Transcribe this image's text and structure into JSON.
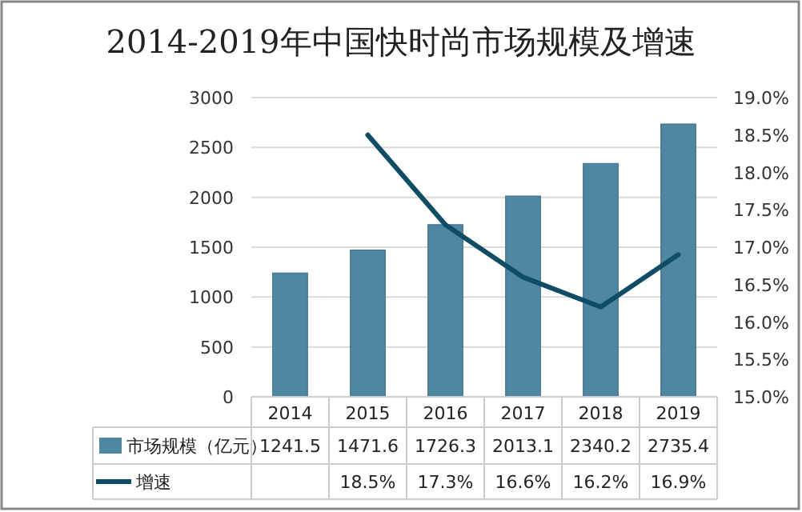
{
  "chart_data": {
    "type": "bar",
    "title": "2014-2019年中国快时尚市场规模及增速",
    "categories": [
      "2014",
      "2015",
      "2016",
      "2017",
      "2018",
      "2019"
    ],
    "series": [
      {
        "name": "市场规模（亿元）",
        "color": "#4f86a0",
        "values": [
          1241.5,
          1471.6,
          1726.3,
          2013.1,
          2340.2,
          2735.4
        ],
        "value_labels": [
          "1241.5",
          "1471.6",
          "1726.3",
          "2013.1",
          "2340.2",
          "2735.4"
        ]
      },
      {
        "name": "增速",
        "type": "line",
        "axis": "y2",
        "color": "#0e4d64",
        "values": [
          null,
          18.5,
          17.3,
          16.6,
          16.2,
          16.9
        ],
        "value_labels": [
          null,
          "18.5%",
          "17.3%",
          "16.6%",
          "16.2%",
          "16.9%"
        ]
      }
    ],
    "ylim": [
      0,
      3000
    ],
    "yticks": [
      0,
      500,
      1000,
      1500,
      2000,
      2500,
      3000
    ],
    "y2lim": [
      15,
      19
    ],
    "y2ticks": [
      {
        "value": 15,
        "label": "15.0%"
      },
      {
        "value": 15.5,
        "label": "15.5%"
      },
      {
        "value": 16,
        "label": "16.0%"
      },
      {
        "value": 16.5,
        "label": "16.5%"
      },
      {
        "value": 17,
        "label": "17.0%"
      },
      {
        "value": 17.5,
        "label": "17.5%"
      },
      {
        "value": 18,
        "label": "18.0%"
      },
      {
        "value": 18.5,
        "label": "18.5%"
      },
      {
        "value": 19,
        "label": "19.0%"
      }
    ],
    "grid": "y",
    "legend": "bottom",
    "marker": "none"
  }
}
